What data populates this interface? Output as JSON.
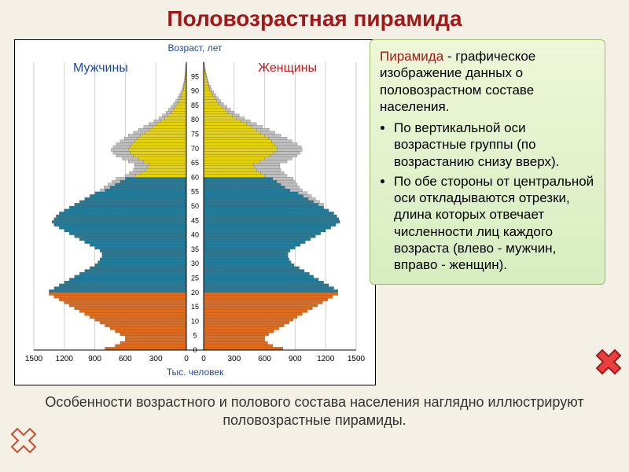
{
  "title": "Половозрастная пирамида",
  "chart": {
    "type": "population-pyramid",
    "age_axis_label": "Возраст, лет",
    "left_label": "Мужчины",
    "right_label": "Женщины",
    "x_axis_label": "Тыс. человек",
    "label_color_left": "#1f4aa0",
    "label_color_right": "#c01818",
    "title_color": "#1f4aa0",
    "xlim": [
      0,
      1500
    ],
    "xticks": [
      1500,
      1200,
      900,
      600,
      300,
      0
    ],
    "background_color": "#ffffff",
    "grid_color": "#cfcfcf",
    "axis_color": "#000000",
    "age_tick_step": 5,
    "age_tick_labels": [
      0,
      5,
      10,
      15,
      20,
      25,
      30,
      35,
      40,
      45,
      50,
      55,
      60,
      65,
      70,
      75,
      80,
      85,
      90,
      95
    ],
    "color_bands": [
      {
        "name": "children",
        "ages": [
          0,
          19
        ],
        "color": "#e06a1b"
      },
      {
        "name": "working",
        "ages": [
          20,
          59
        ],
        "color": "#1f7a99"
      },
      {
        "name": "elderly",
        "ages": [
          60,
          99
        ],
        "color": "#e6d20a"
      }
    ],
    "secondary_color": "#bfbfbf",
    "bar_border_color": "#666666",
    "male": [
      {
        "age": 0,
        "v": 800,
        "s": 0
      },
      {
        "age": 1,
        "v": 700,
        "s": 0
      },
      {
        "age": 2,
        "v": 650,
        "s": 0
      },
      {
        "age": 3,
        "v": 600,
        "s": 0
      },
      {
        "age": 4,
        "v": 600,
        "s": 0
      },
      {
        "age": 5,
        "v": 650,
        "s": 0
      },
      {
        "age": 6,
        "v": 700,
        "s": 0
      },
      {
        "age": 7,
        "v": 750,
        "s": 0
      },
      {
        "age": 8,
        "v": 800,
        "s": 0
      },
      {
        "age": 9,
        "v": 850,
        "s": 0
      },
      {
        "age": 10,
        "v": 900,
        "s": 0
      },
      {
        "age": 11,
        "v": 950,
        "s": 0
      },
      {
        "age": 12,
        "v": 1000,
        "s": 0
      },
      {
        "age": 13,
        "v": 1050,
        "s": 0
      },
      {
        "age": 14,
        "v": 1100,
        "s": 0
      },
      {
        "age": 15,
        "v": 1150,
        "s": 0
      },
      {
        "age": 16,
        "v": 1200,
        "s": 0
      },
      {
        "age": 17,
        "v": 1250,
        "s": 0
      },
      {
        "age": 18,
        "v": 1300,
        "s": 0
      },
      {
        "age": 19,
        "v": 1350,
        "s": 0
      },
      {
        "age": 20,
        "v": 1350,
        "s": 0
      },
      {
        "age": 21,
        "v": 1300,
        "s": 0
      },
      {
        "age": 22,
        "v": 1250,
        "s": 0
      },
      {
        "age": 23,
        "v": 1200,
        "s": 0
      },
      {
        "age": 24,
        "v": 1150,
        "s": 0
      },
      {
        "age": 25,
        "v": 1100,
        "s": 0
      },
      {
        "age": 26,
        "v": 1050,
        "s": 0
      },
      {
        "age": 27,
        "v": 1000,
        "s": 0
      },
      {
        "age": 28,
        "v": 950,
        "s": 0
      },
      {
        "age": 29,
        "v": 900,
        "s": 0
      },
      {
        "age": 30,
        "v": 870,
        "s": 0
      },
      {
        "age": 31,
        "v": 850,
        "s": 0
      },
      {
        "age": 32,
        "v": 830,
        "s": 0
      },
      {
        "age": 33,
        "v": 830,
        "s": 0
      },
      {
        "age": 34,
        "v": 850,
        "s": 0
      },
      {
        "age": 35,
        "v": 900,
        "s": 0
      },
      {
        "age": 36,
        "v": 950,
        "s": 0
      },
      {
        "age": 37,
        "v": 1000,
        "s": 0
      },
      {
        "age": 38,
        "v": 1050,
        "s": 0
      },
      {
        "age": 39,
        "v": 1100,
        "s": 0
      },
      {
        "age": 40,
        "v": 1150,
        "s": 0
      },
      {
        "age": 41,
        "v": 1200,
        "s": 0
      },
      {
        "age": 42,
        "v": 1250,
        "s": 0
      },
      {
        "age": 43,
        "v": 1300,
        "s": 0
      },
      {
        "age": 44,
        "v": 1320,
        "s": 0
      },
      {
        "age": 45,
        "v": 1300,
        "s": 0
      },
      {
        "age": 46,
        "v": 1280,
        "s": 0
      },
      {
        "age": 47,
        "v": 1250,
        "s": 0
      },
      {
        "age": 48,
        "v": 1200,
        "s": 0
      },
      {
        "age": 49,
        "v": 1150,
        "s": 0
      },
      {
        "age": 50,
        "v": 1100,
        "s": 0
      },
      {
        "age": 51,
        "v": 1050,
        "s": 0
      },
      {
        "age": 52,
        "v": 1000,
        "s": 0
      },
      {
        "age": 53,
        "v": 950,
        "s": 0
      },
      {
        "age": 54,
        "v": 900,
        "s": 0
      },
      {
        "age": 55,
        "v": 800,
        "s": 50
      },
      {
        "age": 56,
        "v": 750,
        "s": 60
      },
      {
        "age": 57,
        "v": 700,
        "s": 70
      },
      {
        "age": 58,
        "v": 650,
        "s": 80
      },
      {
        "age": 59,
        "v": 600,
        "s": 90
      },
      {
        "age": 60,
        "v": 500,
        "s": 100
      },
      {
        "age": 61,
        "v": 450,
        "s": 110
      },
      {
        "age": 62,
        "v": 400,
        "s": 120
      },
      {
        "age": 63,
        "v": 380,
        "s": 130
      },
      {
        "age": 64,
        "v": 370,
        "s": 140
      },
      {
        "age": 65,
        "v": 420,
        "s": 150
      },
      {
        "age": 66,
        "v": 470,
        "s": 160
      },
      {
        "age": 67,
        "v": 520,
        "s": 170
      },
      {
        "age": 68,
        "v": 550,
        "s": 170
      },
      {
        "age": 69,
        "v": 570,
        "s": 170
      },
      {
        "age": 70,
        "v": 560,
        "s": 160
      },
      {
        "age": 71,
        "v": 540,
        "s": 150
      },
      {
        "age": 72,
        "v": 510,
        "s": 140
      },
      {
        "age": 73,
        "v": 480,
        "s": 130
      },
      {
        "age": 74,
        "v": 450,
        "s": 120
      },
      {
        "age": 75,
        "v": 410,
        "s": 110
      },
      {
        "age": 76,
        "v": 370,
        "s": 100
      },
      {
        "age": 77,
        "v": 330,
        "s": 90
      },
      {
        "age": 78,
        "v": 290,
        "s": 80
      },
      {
        "age": 79,
        "v": 250,
        "s": 70
      },
      {
        "age": 80,
        "v": 210,
        "s": 60
      },
      {
        "age": 81,
        "v": 180,
        "s": 55
      },
      {
        "age": 82,
        "v": 150,
        "s": 50
      },
      {
        "age": 83,
        "v": 130,
        "s": 45
      },
      {
        "age": 84,
        "v": 110,
        "s": 40
      },
      {
        "age": 85,
        "v": 90,
        "s": 35
      },
      {
        "age": 86,
        "v": 75,
        "s": 30
      },
      {
        "age": 87,
        "v": 60,
        "s": 25
      },
      {
        "age": 88,
        "v": 50,
        "s": 20
      },
      {
        "age": 89,
        "v": 40,
        "s": 15
      },
      {
        "age": 90,
        "v": 30,
        "s": 12
      },
      {
        "age": 91,
        "v": 25,
        "s": 10
      },
      {
        "age": 92,
        "v": 20,
        "s": 8
      },
      {
        "age": 93,
        "v": 15,
        "s": 6
      },
      {
        "age": 94,
        "v": 12,
        "s": 5
      },
      {
        "age": 95,
        "v": 10,
        "s": 4
      },
      {
        "age": 96,
        "v": 8,
        "s": 3
      },
      {
        "age": 97,
        "v": 6,
        "s": 2
      },
      {
        "age": 98,
        "v": 4,
        "s": 2
      },
      {
        "age": 99,
        "v": 2,
        "s": 1
      }
    ],
    "female": [
      {
        "age": 0,
        "v": 780,
        "s": 0
      },
      {
        "age": 1,
        "v": 680,
        "s": 0
      },
      {
        "age": 2,
        "v": 630,
        "s": 0
      },
      {
        "age": 3,
        "v": 600,
        "s": 0
      },
      {
        "age": 4,
        "v": 600,
        "s": 0
      },
      {
        "age": 5,
        "v": 640,
        "s": 0
      },
      {
        "age": 6,
        "v": 690,
        "s": 0
      },
      {
        "age": 7,
        "v": 740,
        "s": 0
      },
      {
        "age": 8,
        "v": 790,
        "s": 0
      },
      {
        "age": 9,
        "v": 840,
        "s": 0
      },
      {
        "age": 10,
        "v": 880,
        "s": 0
      },
      {
        "age": 11,
        "v": 920,
        "s": 0
      },
      {
        "age": 12,
        "v": 970,
        "s": 0
      },
      {
        "age": 13,
        "v": 1020,
        "s": 0
      },
      {
        "age": 14,
        "v": 1070,
        "s": 0
      },
      {
        "age": 15,
        "v": 1120,
        "s": 0
      },
      {
        "age": 16,
        "v": 1170,
        "s": 0
      },
      {
        "age": 17,
        "v": 1220,
        "s": 0
      },
      {
        "age": 18,
        "v": 1270,
        "s": 0
      },
      {
        "age": 19,
        "v": 1320,
        "s": 0
      },
      {
        "age": 20,
        "v": 1320,
        "s": 0
      },
      {
        "age": 21,
        "v": 1280,
        "s": 0
      },
      {
        "age": 22,
        "v": 1230,
        "s": 0
      },
      {
        "age": 23,
        "v": 1180,
        "s": 0
      },
      {
        "age": 24,
        "v": 1130,
        "s": 0
      },
      {
        "age": 25,
        "v": 1080,
        "s": 0
      },
      {
        "age": 26,
        "v": 1040,
        "s": 0
      },
      {
        "age": 27,
        "v": 990,
        "s": 0
      },
      {
        "age": 28,
        "v": 940,
        "s": 0
      },
      {
        "age": 29,
        "v": 890,
        "s": 0
      },
      {
        "age": 30,
        "v": 860,
        "s": 0
      },
      {
        "age": 31,
        "v": 840,
        "s": 0
      },
      {
        "age": 32,
        "v": 830,
        "s": 0
      },
      {
        "age": 33,
        "v": 830,
        "s": 0
      },
      {
        "age": 34,
        "v": 850,
        "s": 0
      },
      {
        "age": 35,
        "v": 900,
        "s": 0
      },
      {
        "age": 36,
        "v": 950,
        "s": 0
      },
      {
        "age": 37,
        "v": 1000,
        "s": 0
      },
      {
        "age": 38,
        "v": 1050,
        "s": 0
      },
      {
        "age": 39,
        "v": 1100,
        "s": 0
      },
      {
        "age": 40,
        "v": 1150,
        "s": 0
      },
      {
        "age": 41,
        "v": 1200,
        "s": 0
      },
      {
        "age": 42,
        "v": 1250,
        "s": 0
      },
      {
        "age": 43,
        "v": 1300,
        "s": 0
      },
      {
        "age": 44,
        "v": 1340,
        "s": 0
      },
      {
        "age": 45,
        "v": 1330,
        "s": 0
      },
      {
        "age": 46,
        "v": 1310,
        "s": 0
      },
      {
        "age": 47,
        "v": 1280,
        "s": 0
      },
      {
        "age": 48,
        "v": 1230,
        "s": 0
      },
      {
        "age": 49,
        "v": 1180,
        "s": 0
      },
      {
        "age": 50,
        "v": 1130,
        "s": 50
      },
      {
        "age": 51,
        "v": 1080,
        "s": 60
      },
      {
        "age": 52,
        "v": 1030,
        "s": 70
      },
      {
        "age": 53,
        "v": 980,
        "s": 80
      },
      {
        "age": 54,
        "v": 930,
        "s": 90
      },
      {
        "age": 55,
        "v": 850,
        "s": 120
      },
      {
        "age": 56,
        "v": 800,
        "s": 140
      },
      {
        "age": 57,
        "v": 760,
        "s": 160
      },
      {
        "age": 58,
        "v": 720,
        "s": 180
      },
      {
        "age": 59,
        "v": 680,
        "s": 200
      },
      {
        "age": 60,
        "v": 600,
        "s": 220
      },
      {
        "age": 61,
        "v": 560,
        "s": 230
      },
      {
        "age": 62,
        "v": 520,
        "s": 240
      },
      {
        "age": 63,
        "v": 500,
        "s": 250
      },
      {
        "age": 64,
        "v": 490,
        "s": 260
      },
      {
        "age": 65,
        "v": 550,
        "s": 270
      },
      {
        "age": 66,
        "v": 600,
        "s": 270
      },
      {
        "age": 67,
        "v": 650,
        "s": 270
      },
      {
        "age": 68,
        "v": 690,
        "s": 260
      },
      {
        "age": 69,
        "v": 720,
        "s": 250
      },
      {
        "age": 70,
        "v": 720,
        "s": 240
      },
      {
        "age": 71,
        "v": 700,
        "s": 220
      },
      {
        "age": 72,
        "v": 670,
        "s": 200
      },
      {
        "age": 73,
        "v": 640,
        "s": 180
      },
      {
        "age": 74,
        "v": 600,
        "s": 160
      },
      {
        "age": 75,
        "v": 560,
        "s": 140
      },
      {
        "age": 76,
        "v": 520,
        "s": 125
      },
      {
        "age": 77,
        "v": 470,
        "s": 110
      },
      {
        "age": 78,
        "v": 420,
        "s": 100
      },
      {
        "age": 79,
        "v": 370,
        "s": 90
      },
      {
        "age": 80,
        "v": 320,
        "s": 80
      },
      {
        "age": 81,
        "v": 280,
        "s": 70
      },
      {
        "age": 82,
        "v": 240,
        "s": 60
      },
      {
        "age": 83,
        "v": 210,
        "s": 55
      },
      {
        "age": 84,
        "v": 180,
        "s": 50
      },
      {
        "age": 85,
        "v": 150,
        "s": 45
      },
      {
        "age": 86,
        "v": 130,
        "s": 40
      },
      {
        "age": 87,
        "v": 110,
        "s": 35
      },
      {
        "age": 88,
        "v": 90,
        "s": 30
      },
      {
        "age": 89,
        "v": 75,
        "s": 25
      },
      {
        "age": 90,
        "v": 60,
        "s": 20
      },
      {
        "age": 91,
        "v": 50,
        "s": 17
      },
      {
        "age": 92,
        "v": 40,
        "s": 14
      },
      {
        "age": 93,
        "v": 32,
        "s": 12
      },
      {
        "age": 94,
        "v": 25,
        "s": 10
      },
      {
        "age": 95,
        "v": 20,
        "s": 8
      },
      {
        "age": 96,
        "v": 15,
        "s": 6
      },
      {
        "age": 97,
        "v": 12,
        "s": 5
      },
      {
        "age": 98,
        "v": 8,
        "s": 3
      },
      {
        "age": 99,
        "v": 5,
        "s": 2
      }
    ]
  },
  "caption": "Особенности возрастного и полового состава населения наглядно иллюстрируют половозрастные пирамиды.",
  "info": {
    "term": "Пирамида",
    "definition": " - графическое изображение данных о половозрастном составе населения.",
    "bullets": [
      "По вертикальной оси возрастные группы (по возрастанию снизу вверх).",
      "По обе стороны от центральной оси откладываются отрезки, длина которых отвечает численности лиц каждого возраста (влево - мужчин, вправо - женщин)."
    ]
  },
  "nav": {
    "prev_fill": "#f5f0e6",
    "prev_stroke": "#c05030",
    "next_fill": "#e84040",
    "next_stroke": "#a01818"
  }
}
